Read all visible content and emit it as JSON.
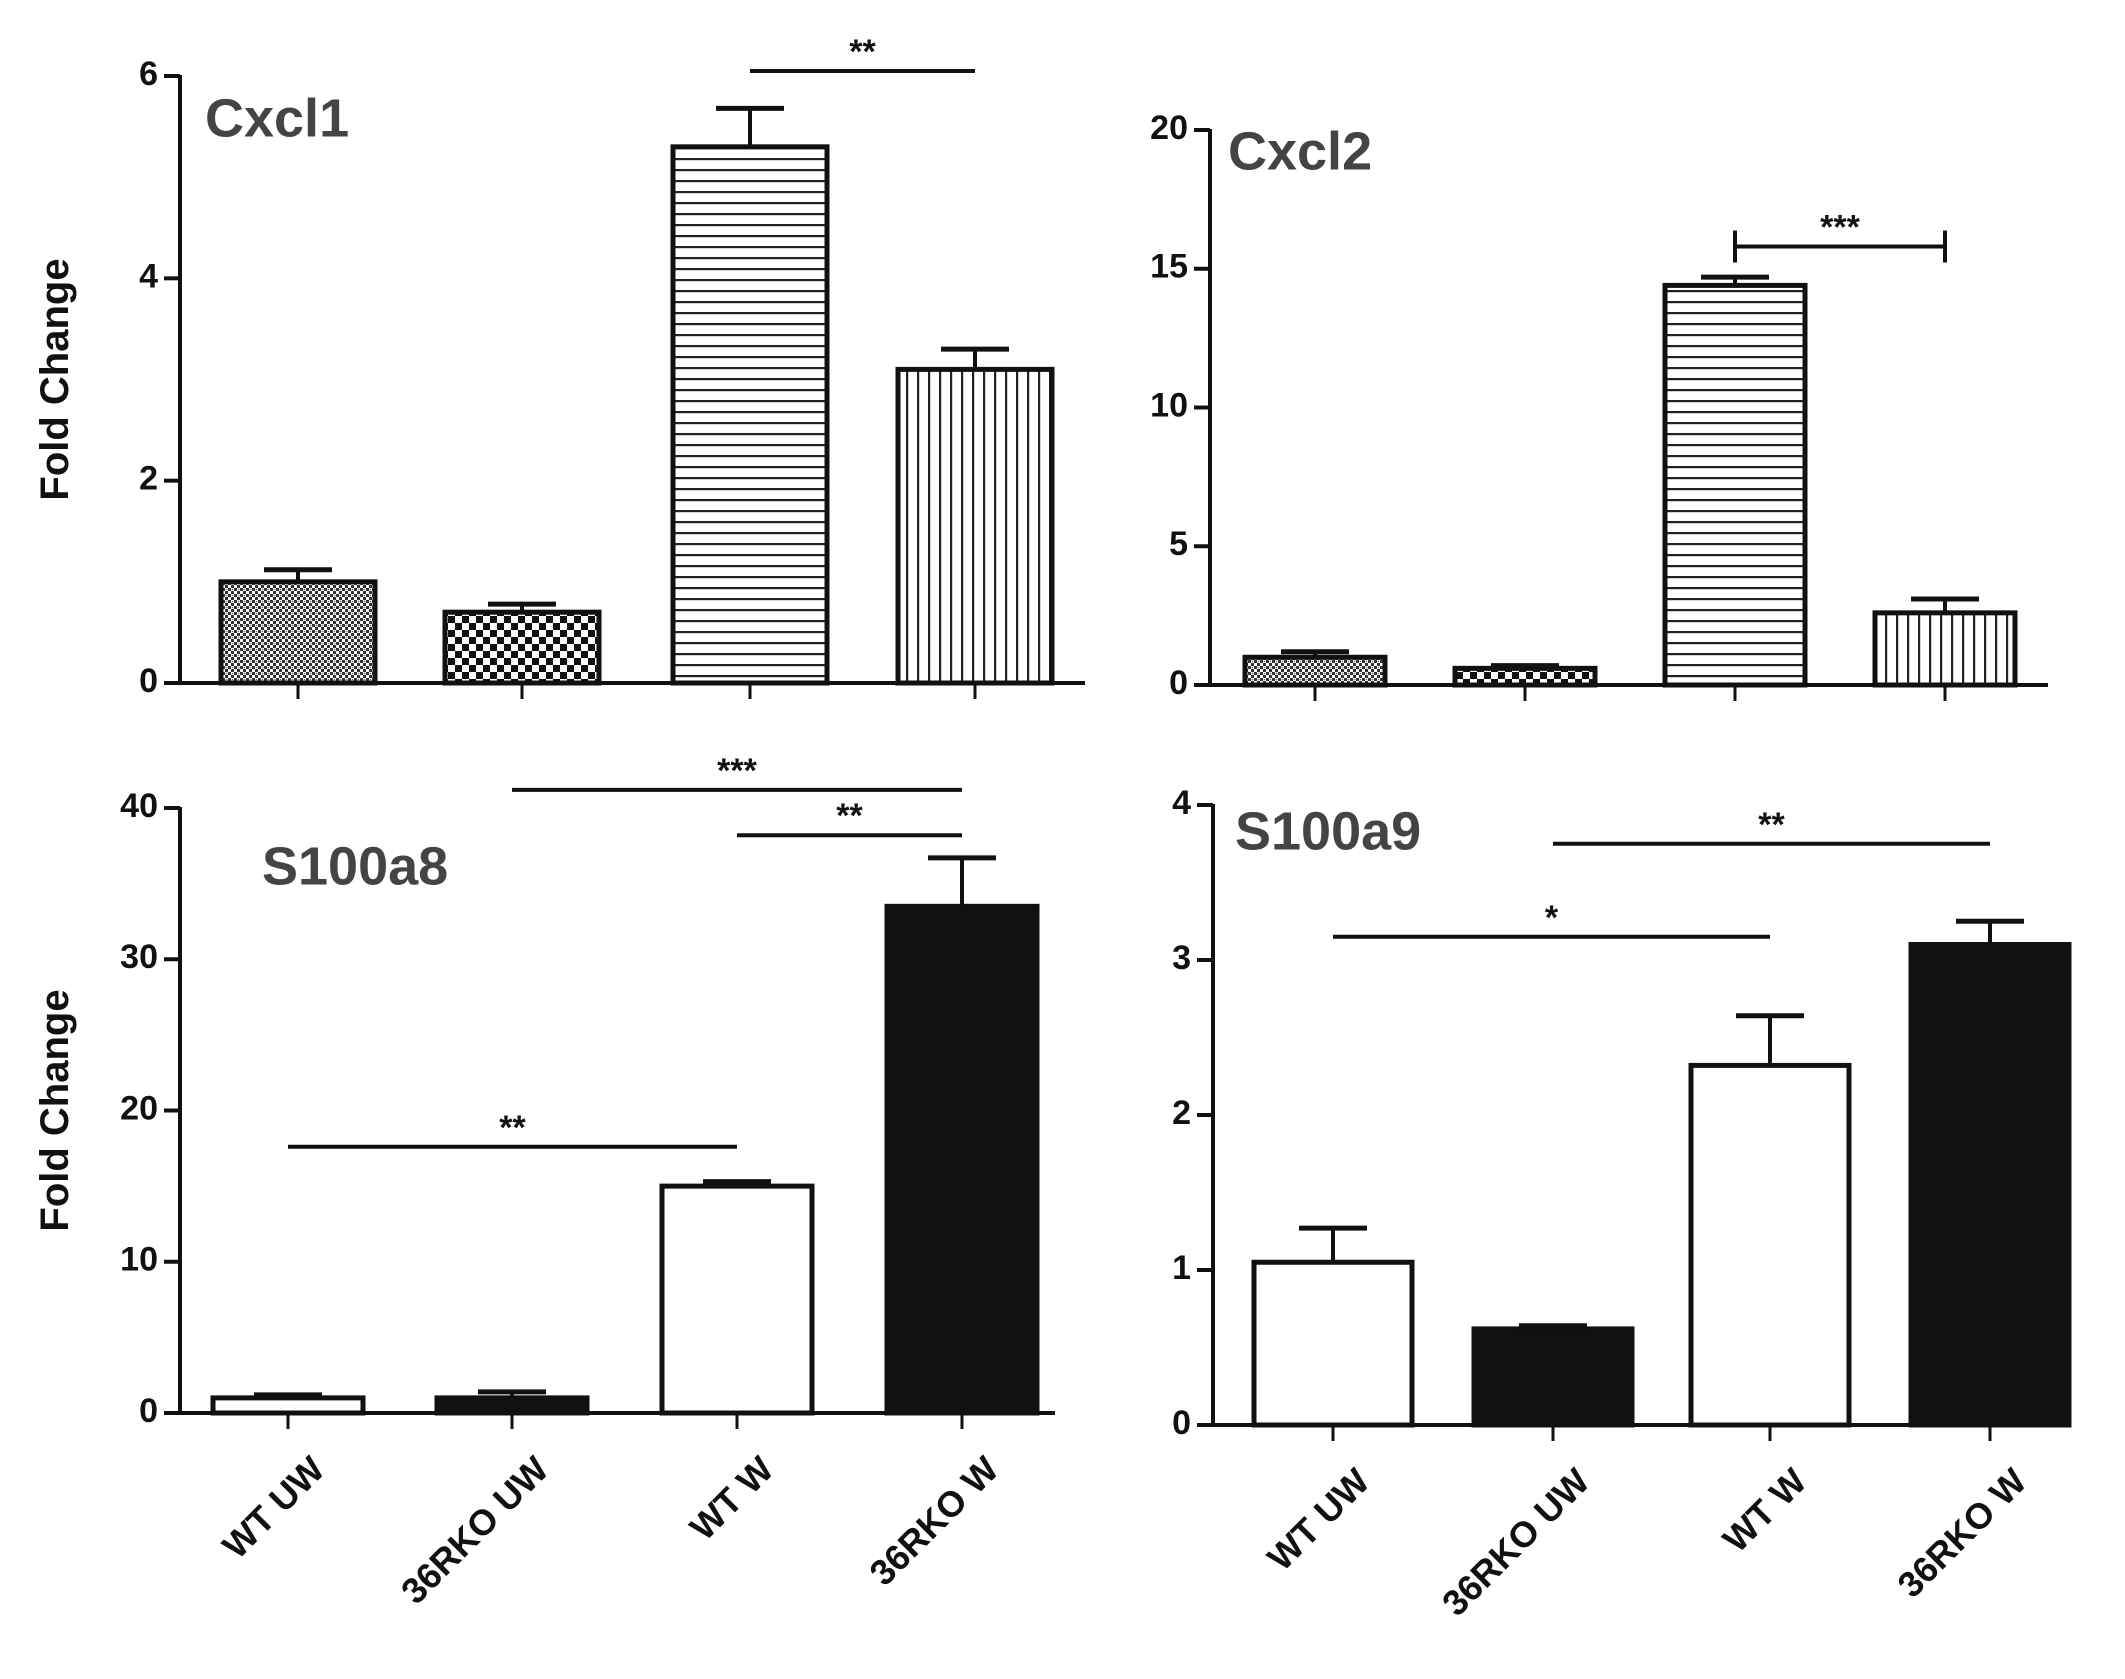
{
  "figure": {
    "group_labels": [
      "WT UW",
      "36RKO UW",
      "WT W",
      "36RKO W"
    ],
    "y_axis_label": "Fold Change",
    "colors": {
      "ink": "#111111",
      "title": "#444444",
      "paper": "#ffffff"
    }
  },
  "chart_data": [
    {
      "id": "cxcl1",
      "type": "bar",
      "title": "Cxcl1",
      "ylabel": "Fold Change",
      "categories": [
        "WT UW",
        "36RKO UW",
        "WT W",
        "36RKO W"
      ],
      "values": [
        1.0,
        0.7,
        5.3,
        3.1
      ],
      "errors": [
        0.12,
        0.08,
        0.38,
        0.2
      ],
      "fills": [
        "dots",
        "checker",
        "hlines",
        "vlines"
      ],
      "ylim": [
        0,
        6
      ],
      "ticks": [
        0,
        2,
        4,
        6
      ],
      "show_category_labels": false,
      "significance": [
        {
          "from": 2,
          "to": 3,
          "y": 6.05,
          "label": "**",
          "caps": false
        }
      ]
    },
    {
      "id": "cxcl2",
      "type": "bar",
      "title": "Cxcl2",
      "ylabel": "",
      "categories": [
        "WT UW",
        "36RKO UW",
        "WT W",
        "36RKO W"
      ],
      "values": [
        1.0,
        0.6,
        14.4,
        2.6
      ],
      "errors": [
        0.2,
        0.1,
        0.3,
        0.5
      ],
      "fills": [
        "dots",
        "checker",
        "hlines",
        "vlines"
      ],
      "ylim": [
        0,
        20
      ],
      "ticks": [
        0,
        5,
        10,
        15,
        20
      ],
      "show_category_labels": false,
      "significance": [
        {
          "from": 2,
          "to": 3,
          "y": 15.8,
          "label": "***",
          "caps": true
        }
      ]
    },
    {
      "id": "s100a8",
      "type": "bar",
      "title": "S100a8",
      "ylabel": "Fold Change",
      "categories": [
        "WT UW",
        "36RKO UW",
        "WT W",
        "36RKO W"
      ],
      "values": [
        1.0,
        1.0,
        15.0,
        33.5
      ],
      "errors": [
        0.2,
        0.4,
        0.3,
        3.2
      ],
      "fills": [
        "white",
        "black",
        "white",
        "black"
      ],
      "ylim": [
        0,
        40
      ],
      "ticks": [
        0,
        10,
        20,
        30,
        40
      ],
      "show_category_labels": true,
      "significance": [
        {
          "from": 1,
          "to": 3,
          "y": 41.2,
          "label": "***",
          "caps": false
        },
        {
          "from": 2,
          "to": 3,
          "y": 38.2,
          "label": "**",
          "caps": false
        },
        {
          "from": 0,
          "to": 2,
          "y": 17.6,
          "label": "**",
          "caps": false
        }
      ]
    },
    {
      "id": "s100a9",
      "type": "bar",
      "title": "S100a9",
      "ylabel": "",
      "categories": [
        "WT UW",
        "36RKO UW",
        "WT W",
        "36RKO W"
      ],
      "values": [
        1.05,
        0.62,
        2.32,
        3.1
      ],
      "errors": [
        0.22,
        0.02,
        0.32,
        0.15
      ],
      "fills": [
        "white",
        "black",
        "white",
        "black"
      ],
      "ylim": [
        0,
        4
      ],
      "ticks": [
        0,
        1,
        2,
        3,
        4
      ],
      "show_category_labels": true,
      "significance": [
        {
          "from": 1,
          "to": 3,
          "y": 3.75,
          "label": "**",
          "caps": false
        },
        {
          "from": 0,
          "to": 2,
          "y": 3.15,
          "label": "*",
          "caps": false
        }
      ]
    }
  ]
}
